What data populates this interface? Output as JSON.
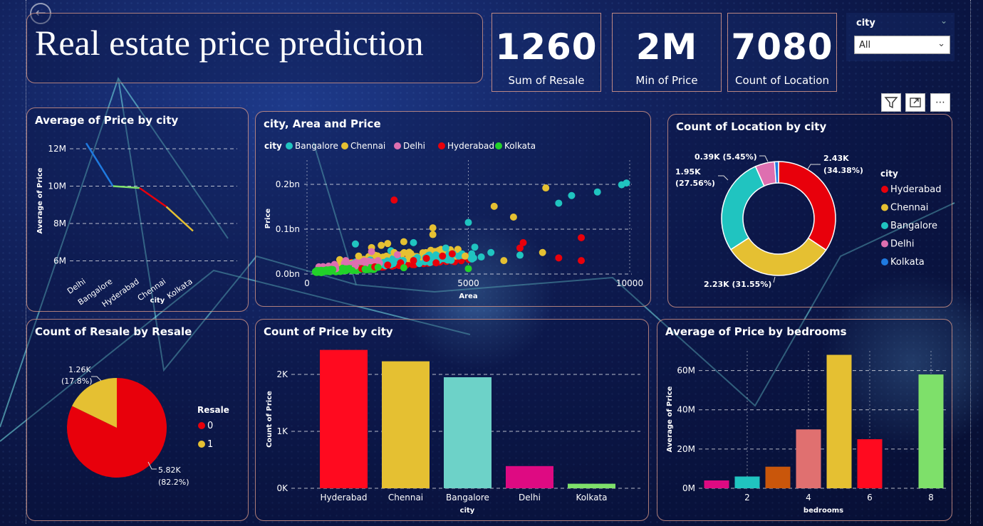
{
  "page": {
    "title": "Real estate price prediction",
    "colors": {
      "hyderabad": "#e8000b",
      "chennai": "#e5c032",
      "bangalore": "#20c4c0",
      "delhi": "#de6fb0",
      "kolkata": "#1f7ae0"
    }
  },
  "cards": [
    {
      "value": "1260",
      "label": "Sum of Resale"
    },
    {
      "value": "2M",
      "label": "Min of Price"
    },
    {
      "value": "7080",
      "label": "Count of Location"
    }
  ],
  "slicer": {
    "title": "city",
    "selected": "All"
  },
  "toolbar": {
    "filter_icon": "filter-icon",
    "focus_icon": "focus-mode-icon",
    "more_icon": "more-options-icon"
  },
  "chart_data": [
    {
      "id": "avg_price_city",
      "type": "line",
      "title": "Average of Price by city",
      "xlabel": "city",
      "ylabel": "Average of Price",
      "categories": [
        "Delhi",
        "Bangalore",
        "Hyderabad",
        "Chennai",
        "Kolkata"
      ],
      "values": [
        12.3,
        10.0,
        9.9,
        8.9,
        7.6
      ],
      "yticks": [
        "6M",
        "8M",
        "10M",
        "12M"
      ],
      "ylim": [
        5.6,
        12.8
      ],
      "unit": "M",
      "segment_colors": [
        "#1f7ae0",
        "#7ee06a",
        "#e8000b",
        "#e5c032"
      ]
    },
    {
      "id": "scatter_area_price",
      "type": "scatter",
      "title": "city, Area and Price",
      "xlabel": "Area",
      "ylabel": "Price",
      "legend_title": "city",
      "legend": [
        {
          "name": "Bangalore",
          "color": "#20c4c0"
        },
        {
          "name": "Chennai",
          "color": "#e5c032"
        },
        {
          "name": "Delhi",
          "color": "#de6fb0"
        },
        {
          "name": "Hyderabad",
          "color": "#e8000b"
        },
        {
          "name": "Kolkata",
          "color": "#22d12a"
        }
      ],
      "xlim": [
        0,
        10000
      ],
      "ylim": [
        0,
        0.21
      ],
      "xticks": [
        "0",
        "5000",
        "10000"
      ],
      "yticks": [
        "0.0bn",
        "0.1bn",
        "0.2bn"
      ],
      "series": [
        {
          "name": "Bangalore",
          "points": [
            [
              9900,
              0.203
            ],
            [
              9750,
              0.199
            ],
            [
              9000,
              0.183
            ],
            [
              8200,
              0.175
            ],
            [
              7800,
              0.158
            ],
            [
              5000,
              0.115
            ],
            [
              5200,
              0.06
            ],
            [
              5700,
              0.048
            ],
            [
              6600,
              0.042
            ],
            [
              4300,
              0.058
            ],
            [
              1500,
              0.067
            ],
            [
              3300,
              0.07
            ],
            [
              2600,
              0.052
            ],
            [
              4700,
              0.04
            ],
            [
              5400,
              0.038
            ]
          ]
        },
        {
          "name": "Chennai",
          "points": [
            [
              7400,
              0.192
            ],
            [
              5800,
              0.151
            ],
            [
              6400,
              0.127
            ],
            [
              3900,
              0.103
            ],
            [
              3900,
              0.088
            ],
            [
              3000,
              0.072
            ],
            [
              2500,
              0.068
            ],
            [
              2300,
              0.064
            ],
            [
              2000,
              0.059
            ],
            [
              2700,
              0.048
            ],
            [
              7300,
              0.048
            ],
            [
              4900,
              0.04
            ],
            [
              6100,
              0.03
            ],
            [
              1600,
              0.04
            ]
          ]
        },
        {
          "name": "Delhi",
          "points": [
            [
              1200,
              0.03
            ],
            [
              2000,
              0.05
            ],
            [
              2800,
              0.043
            ],
            [
              1800,
              0.022
            ],
            [
              900,
              0.012
            ],
            [
              1500,
              0.018
            ]
          ]
        },
        {
          "name": "Hyderabad",
          "points": [
            [
              2700,
              0.165
            ],
            [
              8500,
              0.081
            ],
            [
              6700,
              0.07
            ],
            [
              6600,
              0.058
            ],
            [
              7800,
              0.036
            ],
            [
              8500,
              0.03
            ],
            [
              4500,
              0.045
            ],
            [
              4200,
              0.04
            ],
            [
              3700,
              0.035
            ],
            [
              3300,
              0.03
            ],
            [
              2900,
              0.025
            ],
            [
              2500,
              0.02
            ],
            [
              2100,
              0.016
            ],
            [
              1700,
              0.012
            ],
            [
              4000,
              0.025
            ]
          ]
        },
        {
          "name": "Kolkata",
          "points": [
            [
              500,
              0.007
            ],
            [
              800,
              0.01
            ],
            [
              1100,
              0.013
            ],
            [
              1400,
              0.008
            ],
            [
              1800,
              0.011
            ],
            [
              2200,
              0.015
            ],
            [
              3000,
              0.014
            ],
            [
              5000,
              0.012
            ]
          ]
        }
      ],
      "clusters": [
        {
          "name": "Hyderabad",
          "x0": 1000,
          "x1": 5200,
          "y0": 0.008,
          "y1": 0.04,
          "n": 170
        },
        {
          "name": "Chennai",
          "x0": 1000,
          "x1": 4800,
          "y0": 0.01,
          "y1": 0.055,
          "n": 90
        },
        {
          "name": "Bangalore",
          "x0": 1000,
          "x1": 5200,
          "y0": 0.008,
          "y1": 0.045,
          "n": 60
        },
        {
          "name": "Delhi",
          "x0": 300,
          "x1": 2300,
          "y0": 0.005,
          "y1": 0.03,
          "n": 45
        },
        {
          "name": "Kolkata",
          "x0": 250,
          "x1": 2100,
          "y0": 0.002,
          "y1": 0.014,
          "n": 90
        }
      ]
    },
    {
      "id": "count_location_city",
      "type": "pie",
      "donut": true,
      "title": "Count of Location by city",
      "legend_title": "city",
      "slices": [
        {
          "name": "Hyderabad",
          "value": 2430,
          "label": "2.43K",
          "pct": "(34.38%)",
          "color": "#e8000b"
        },
        {
          "name": "Chennai",
          "value": 2230,
          "label": "2.23K (31.55%)",
          "pct": "",
          "color": "#e5c032"
        },
        {
          "name": "Bangalore",
          "value": 1950,
          "label": "1.95K",
          "pct": "(27.56%)",
          "color": "#20c4c0"
        },
        {
          "name": "Delhi",
          "value": 390,
          "label": "0.39K (5.45%)",
          "pct": "",
          "color": "#de6fb0"
        },
        {
          "name": "Kolkata",
          "value": 80,
          "label": "",
          "pct": "",
          "color": "#1f7ae0"
        }
      ]
    },
    {
      "id": "count_resale",
      "type": "pie",
      "title": "Count of Resale by Resale",
      "legend_title": "Resale",
      "slices": [
        {
          "name": "0",
          "value": 5820,
          "label": "5.82K",
          "pct": "(82.2%)",
          "color": "#e8000b"
        },
        {
          "name": "1",
          "value": 1260,
          "label": "1.26K",
          "pct": "(17.8%)",
          "color": "#e5c032"
        }
      ]
    },
    {
      "id": "count_price_city",
      "type": "bar",
      "title": "Count of Price by city",
      "xlabel": "city",
      "ylabel": "Count of Price",
      "categories": [
        "Hyderabad",
        "Chennai",
        "Bangalore",
        "Delhi",
        "Kolkata"
      ],
      "values": [
        2430,
        2230,
        1950,
        390,
        80
      ],
      "colors": [
        "#ff0a1f",
        "#e5c032",
        "#6dd2c8",
        "#de0a82",
        "#7ee06a"
      ],
      "ylim": [
        0,
        2500
      ],
      "yticks": [
        {
          "v": 0,
          "label": "0K"
        },
        {
          "v": 1000,
          "label": "1K"
        },
        {
          "v": 2000,
          "label": "2K"
        }
      ]
    },
    {
      "id": "avg_price_bedrooms",
      "type": "bar",
      "title": "Average of Price by bedrooms",
      "xlabel": "bedrooms",
      "ylabel": "Average of Price",
      "categories": [
        1,
        2,
        3,
        4,
        5,
        6,
        7,
        8
      ],
      "values": [
        4,
        6,
        11,
        30,
        68,
        25,
        null,
        58
      ],
      "colors": [
        "#de0a82",
        "#20c4c0",
        "#c9560b",
        "#e07070",
        "#e5c032",
        "#ff0a1f",
        "#000000",
        "#7ee06a"
      ],
      "xticks": [
        "2",
        "4",
        "6",
        "8"
      ],
      "ylim": [
        0,
        70
      ],
      "yticks": [
        {
          "v": 0,
          "label": "0M"
        },
        {
          "v": 20,
          "label": "20M"
        },
        {
          "v": 40,
          "label": "40M"
        },
        {
          "v": 60,
          "label": "60M"
        }
      ]
    }
  ]
}
